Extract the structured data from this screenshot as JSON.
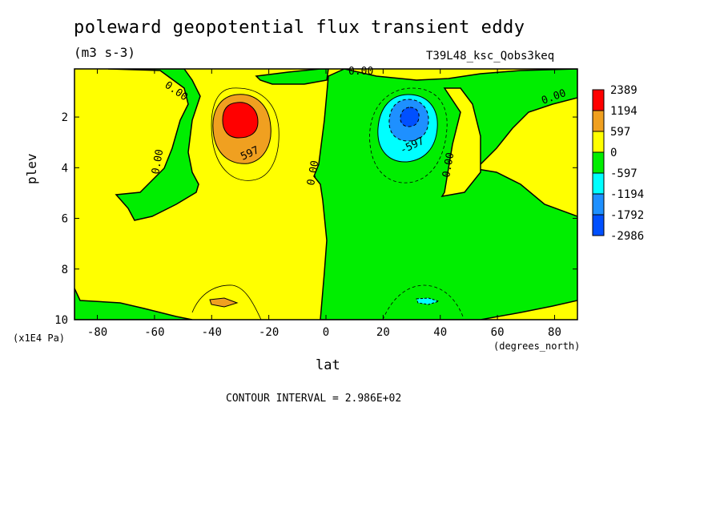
{
  "chart_data": {
    "type": "heatmap",
    "title": "poleward geopotential flux transient eddy",
    "units": "(m3 s-3)",
    "run_label": "T39L48_ksc_Qobs3keq",
    "xlabel": "lat",
    "x_units": "(degrees_north)",
    "ylabel": "plev",
    "y_units": "(x1E4 Pa)",
    "xlim": [
      -88,
      88
    ],
    "ylim": [
      10,
      0.1
    ],
    "x_ticks": [
      "-80",
      "-60",
      "-40",
      "-20",
      "0",
      "20",
      "40",
      "60",
      "80"
    ],
    "y_ticks": [
      "2",
      "4",
      "6",
      "8",
      "10"
    ],
    "contour_interval_text": "CONTOUR INTERVAL = 2.986E+02",
    "contour_labels": [
      "0.00",
      "0.00",
      "0.00",
      "0.00",
      "0.00",
      "0.00",
      "597",
      "-597"
    ],
    "colorbar": {
      "labels": [
        "2389",
        "1194",
        "597",
        "0",
        "-597",
        "-1194",
        "-1792",
        "-2986"
      ],
      "colors": [
        "#ff0000",
        "#f0a020",
        "#ffff00",
        "#00ee00",
        "#00ffff",
        "#1e90ff",
        "#0050ff"
      ]
    },
    "features": [
      {
        "name": "positive maximum",
        "lat": -30,
        "plev": 2.0,
        "value": 2389
      },
      {
        "name": "negative minimum",
        "lat": 30,
        "plev": 2.0,
        "value": -2986
      }
    ]
  }
}
